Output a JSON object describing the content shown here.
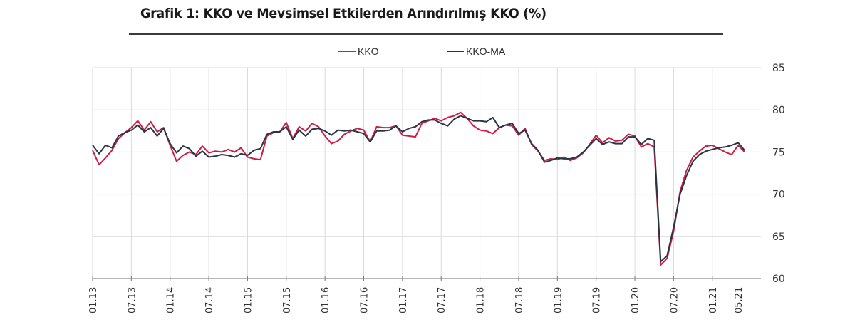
{
  "title": "Grafik 1: KKO ve Mevsimsel Etkilerden Arındırılmış KKO (%)",
  "legend": [
    {
      "label": "KKO",
      "color": "#d01c44"
    },
    {
      "label": "KKO-MA",
      "color": "#2a3444"
    }
  ],
  "chart_data": {
    "type": "line",
    "title": "Grafik 1: KKO ve Mevsimsel Etkilerden Arındırılmış KKO (%)",
    "xlabel": "",
    "ylabel": "",
    "ylim": [
      60,
      85
    ],
    "yticks": [
      60,
      65,
      70,
      75,
      80,
      85
    ],
    "y_axis_position": "right",
    "grid": true,
    "legend_position": "top",
    "x_start": "01.13",
    "x_end": "05.21",
    "frequency": "monthly",
    "xtick_labels": [
      "01.13",
      "07.13",
      "01.14",
      "07.14",
      "01.15",
      "07.15",
      "01.16",
      "07.16",
      "01.17",
      "07.17",
      "01.18",
      "07.18",
      "01.19",
      "07.19",
      "01.20",
      "07.20",
      "01.21",
      "05.21"
    ],
    "xtick_month_index": [
      0,
      6,
      12,
      18,
      24,
      30,
      36,
      42,
      48,
      54,
      60,
      66,
      72,
      78,
      84,
      90,
      96,
      100
    ],
    "series": [
      {
        "name": "KKO",
        "color": "#d01c44",
        "values": [
          75.2,
          73.5,
          74.3,
          75.2,
          76.6,
          77.3,
          77.9,
          78.7,
          77.6,
          78.6,
          77.4,
          77.9,
          75.8,
          73.9,
          74.6,
          75.0,
          74.7,
          75.7,
          74.9,
          75.1,
          75.0,
          75.3,
          75.0,
          75.5,
          74.4,
          74.2,
          74.1,
          76.9,
          77.3,
          77.4,
          78.5,
          76.6,
          78.0,
          77.5,
          78.4,
          78.0,
          76.9,
          76.0,
          76.3,
          77.1,
          77.5,
          77.8,
          77.6,
          76.2,
          78.0,
          77.9,
          77.9,
          78.1,
          77.0,
          76.9,
          76.8,
          78.4,
          78.7,
          79.0,
          78.7,
          79.1,
          79.3,
          79.7,
          79.0,
          78.1,
          77.6,
          77.5,
          77.2,
          77.9,
          78.2,
          78.1,
          77.0,
          77.8,
          75.9,
          75.1,
          74.0,
          74.2,
          74.1,
          74.4,
          74.0,
          74.3,
          74.9,
          75.9,
          77.0,
          76.1,
          76.7,
          76.3,
          76.4,
          77.1,
          76.9,
          75.6,
          76.0,
          75.6,
          61.6,
          62.4,
          65.6,
          70.3,
          72.8,
          74.4,
          75.1,
          75.7,
          75.8,
          75.4,
          75.0,
          74.7,
          75.8,
          75.0
        ],
        "note": "Monthly values 01.13–05.21 estimated from gridlines"
      },
      {
        "name": "KKO-MA",
        "color": "#2a3444",
        "values": [
          75.8,
          74.8,
          75.8,
          75.5,
          76.9,
          77.3,
          77.6,
          78.2,
          77.4,
          77.9,
          76.9,
          77.8,
          76.0,
          74.9,
          75.7,
          75.4,
          74.5,
          75.1,
          74.4,
          74.5,
          74.7,
          74.6,
          74.4,
          74.8,
          74.6,
          75.2,
          75.4,
          77.1,
          77.4,
          77.4,
          78.0,
          76.5,
          77.6,
          76.9,
          77.7,
          77.8,
          77.5,
          77.0,
          77.6,
          77.5,
          77.6,
          77.4,
          77.2,
          76.2,
          77.5,
          77.5,
          77.6,
          78.1,
          77.4,
          77.8,
          78.0,
          78.6,
          78.8,
          78.8,
          78.4,
          78.1,
          78.9,
          79.3,
          79.0,
          78.7,
          78.7,
          78.6,
          79.1,
          77.9,
          78.2,
          78.4,
          77.2,
          77.6,
          76.0,
          75.2,
          73.8,
          74.0,
          74.3,
          74.2,
          74.2,
          74.4,
          75.0,
          75.8,
          76.6,
          75.9,
          76.2,
          76.0,
          76.0,
          76.8,
          76.8,
          75.9,
          76.6,
          76.4,
          62.0,
          62.7,
          66.1,
          70.0,
          72.2,
          73.9,
          74.7,
          75.1,
          75.3,
          75.5,
          75.6,
          75.8,
          76.1,
          75.2
        ],
        "note": "Monthly values 01.13–05.21 estimated from gridlines"
      }
    ]
  }
}
